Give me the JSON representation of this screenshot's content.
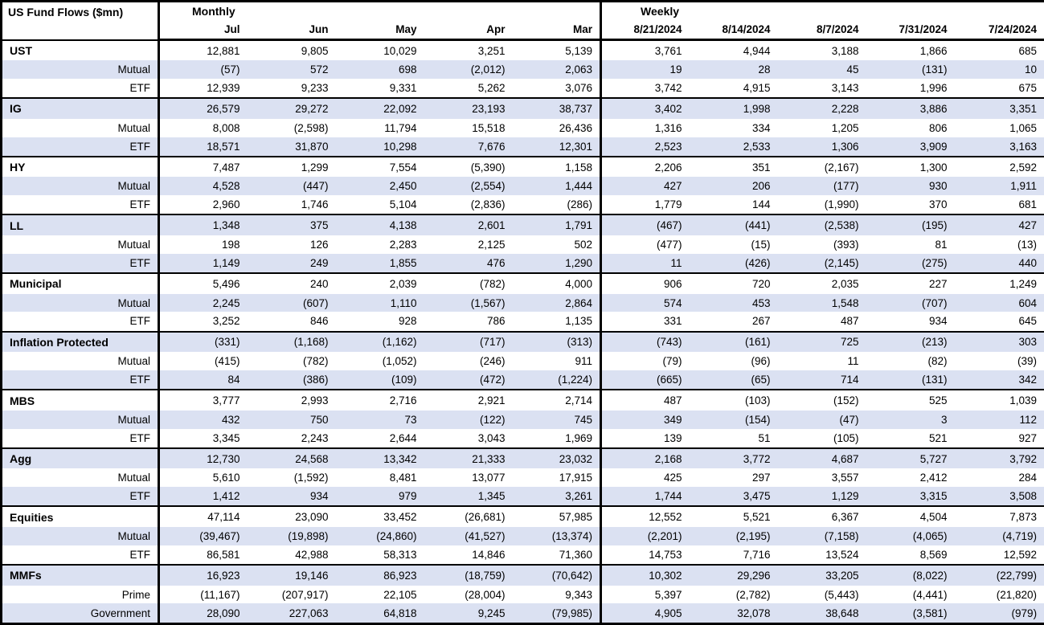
{
  "colors": {
    "band": "#dbe1f2",
    "border": "#000000",
    "background": "#ffffff",
    "text": "#000000"
  },
  "negative_format": "parentheses",
  "chart_data": {
    "type": "table",
    "title": "US Fund Flows ($mn)",
    "column_groups": [
      {
        "label": "Monthly",
        "columns": [
          "Jul",
          "Jun",
          "May",
          "Apr",
          "Mar"
        ]
      },
      {
        "label": "Weekly",
        "columns": [
          "8/21/2024",
          "8/14/2024",
          "8/7/2024",
          "7/31/2024",
          "7/24/2024"
        ]
      }
    ],
    "groups": [
      {
        "category": "UST",
        "rows": [
          {
            "label": "UST",
            "values": [
              "12,881",
              "9,805",
              "10,029",
              "3,251",
              "5,139",
              "3,761",
              "4,944",
              "3,188",
              "1,866",
              "685"
            ]
          },
          {
            "label": "Mutual",
            "values": [
              "(57)",
              "572",
              "698",
              "(2,012)",
              "2,063",
              "19",
              "28",
              "45",
              "(131)",
              "10"
            ]
          },
          {
            "label": "ETF",
            "values": [
              "12,939",
              "9,233",
              "9,331",
              "5,262",
              "3,076",
              "3,742",
              "4,915",
              "3,143",
              "1,996",
              "675"
            ]
          }
        ]
      },
      {
        "category": "IG",
        "rows": [
          {
            "label": "IG",
            "values": [
              "26,579",
              "29,272",
              "22,092",
              "23,193",
              "38,737",
              "3,402",
              "1,998",
              "2,228",
              "3,886",
              "3,351"
            ]
          },
          {
            "label": "Mutual",
            "values": [
              "8,008",
              "(2,598)",
              "11,794",
              "15,518",
              "26,436",
              "1,316",
              "334",
              "1,205",
              "806",
              "1,065"
            ]
          },
          {
            "label": "ETF",
            "values": [
              "18,571",
              "31,870",
              "10,298",
              "7,676",
              "12,301",
              "2,523",
              "2,533",
              "1,306",
              "3,909",
              "3,163"
            ]
          }
        ]
      },
      {
        "category": "HY",
        "rows": [
          {
            "label": "HY",
            "values": [
              "7,487",
              "1,299",
              "7,554",
              "(5,390)",
              "1,158",
              "2,206",
              "351",
              "(2,167)",
              "1,300",
              "2,592"
            ]
          },
          {
            "label": "Mutual",
            "values": [
              "4,528",
              "(447)",
              "2,450",
              "(2,554)",
              "1,444",
              "427",
              "206",
              "(177)",
              "930",
              "1,911"
            ]
          },
          {
            "label": "ETF",
            "values": [
              "2,960",
              "1,746",
              "5,104",
              "(2,836)",
              "(286)",
              "1,779",
              "144",
              "(1,990)",
              "370",
              "681"
            ]
          }
        ]
      },
      {
        "category": "LL",
        "rows": [
          {
            "label": "LL",
            "values": [
              "1,348",
              "375",
              "4,138",
              "2,601",
              "1,791",
              "(467)",
              "(441)",
              "(2,538)",
              "(195)",
              "427"
            ]
          },
          {
            "label": "Mutual",
            "values": [
              "198",
              "126",
              "2,283",
              "2,125",
              "502",
              "(477)",
              "(15)",
              "(393)",
              "81",
              "(13)"
            ]
          },
          {
            "label": "ETF",
            "values": [
              "1,149",
              "249",
              "1,855",
              "476",
              "1,290",
              "11",
              "(426)",
              "(2,145)",
              "(275)",
              "440"
            ]
          }
        ]
      },
      {
        "category": "Municipal",
        "rows": [
          {
            "label": "Municipal",
            "values": [
              "5,496",
              "240",
              "2,039",
              "(782)",
              "4,000",
              "906",
              "720",
              "2,035",
              "227",
              "1,249"
            ]
          },
          {
            "label": "Mutual",
            "values": [
              "2,245",
              "(607)",
              "1,110",
              "(1,567)",
              "2,864",
              "574",
              "453",
              "1,548",
              "(707)",
              "604"
            ]
          },
          {
            "label": "ETF",
            "values": [
              "3,252",
              "846",
              "928",
              "786",
              "1,135",
              "331",
              "267",
              "487",
              "934",
              "645"
            ]
          }
        ]
      },
      {
        "category": "Inflation Protected",
        "rows": [
          {
            "label": "Inflation Protected",
            "values": [
              "(331)",
              "(1,168)",
              "(1,162)",
              "(717)",
              "(313)",
              "(743)",
              "(161)",
              "725",
              "(213)",
              "303"
            ]
          },
          {
            "label": "Mutual",
            "values": [
              "(415)",
              "(782)",
              "(1,052)",
              "(246)",
              "911",
              "(79)",
              "(96)",
              "11",
              "(82)",
              "(39)"
            ]
          },
          {
            "label": "ETF",
            "values": [
              "84",
              "(386)",
              "(109)",
              "(472)",
              "(1,224)",
              "(665)",
              "(65)",
              "714",
              "(131)",
              "342"
            ]
          }
        ]
      },
      {
        "category": "MBS",
        "rows": [
          {
            "label": "MBS",
            "values": [
              "3,777",
              "2,993",
              "2,716",
              "2,921",
              "2,714",
              "487",
              "(103)",
              "(152)",
              "525",
              "1,039"
            ]
          },
          {
            "label": "Mutual",
            "values": [
              "432",
              "750",
              "73",
              "(122)",
              "745",
              "349",
              "(154)",
              "(47)",
              "3",
              "112"
            ]
          },
          {
            "label": "ETF",
            "values": [
              "3,345",
              "2,243",
              "2,644",
              "3,043",
              "1,969",
              "139",
              "51",
              "(105)",
              "521",
              "927"
            ]
          }
        ]
      },
      {
        "category": "Agg",
        "rows": [
          {
            "label": "Agg",
            "values": [
              "12,730",
              "24,568",
              "13,342",
              "21,333",
              "23,032",
              "2,168",
              "3,772",
              "4,687",
              "5,727",
              "3,792"
            ]
          },
          {
            "label": "Mutual",
            "values": [
              "5,610",
              "(1,592)",
              "8,481",
              "13,077",
              "17,915",
              "425",
              "297",
              "3,557",
              "2,412",
              "284"
            ]
          },
          {
            "label": "ETF",
            "values": [
              "1,412",
              "934",
              "979",
              "1,345",
              "3,261",
              "1,744",
              "3,475",
              "1,129",
              "3,315",
              "3,508"
            ]
          }
        ]
      },
      {
        "category": "Equities",
        "rows": [
          {
            "label": "Equities",
            "values": [
              "47,114",
              "23,090",
              "33,452",
              "(26,681)",
              "57,985",
              "12,552",
              "5,521",
              "6,367",
              "4,504",
              "7,873"
            ]
          },
          {
            "label": "Mutual",
            "values": [
              "(39,467)",
              "(19,898)",
              "(24,860)",
              "(41,527)",
              "(13,374)",
              "(2,201)",
              "(2,195)",
              "(7,158)",
              "(4,065)",
              "(4,719)"
            ]
          },
          {
            "label": "ETF",
            "values": [
              "86,581",
              "42,988",
              "58,313",
              "14,846",
              "71,360",
              "14,753",
              "7,716",
              "13,524",
              "8,569",
              "12,592"
            ]
          }
        ]
      },
      {
        "category": "MMFs",
        "rows": [
          {
            "label": "MMFs",
            "values": [
              "16,923",
              "19,146",
              "86,923",
              "(18,759)",
              "(70,642)",
              "10,302",
              "29,296",
              "33,205",
              "(8,022)",
              "(22,799)"
            ]
          },
          {
            "label": "Prime",
            "values": [
              "(11,167)",
              "(207,917)",
              "22,105",
              "(28,004)",
              "9,343",
              "5,397",
              "(2,782)",
              "(5,443)",
              "(4,441)",
              "(21,820)"
            ]
          },
          {
            "label": "Government",
            "values": [
              "28,090",
              "227,063",
              "64,818",
              "9,245",
              "(79,985)",
              "4,905",
              "32,078",
              "38,648",
              "(3,581)",
              "(979)"
            ]
          }
        ]
      }
    ]
  }
}
